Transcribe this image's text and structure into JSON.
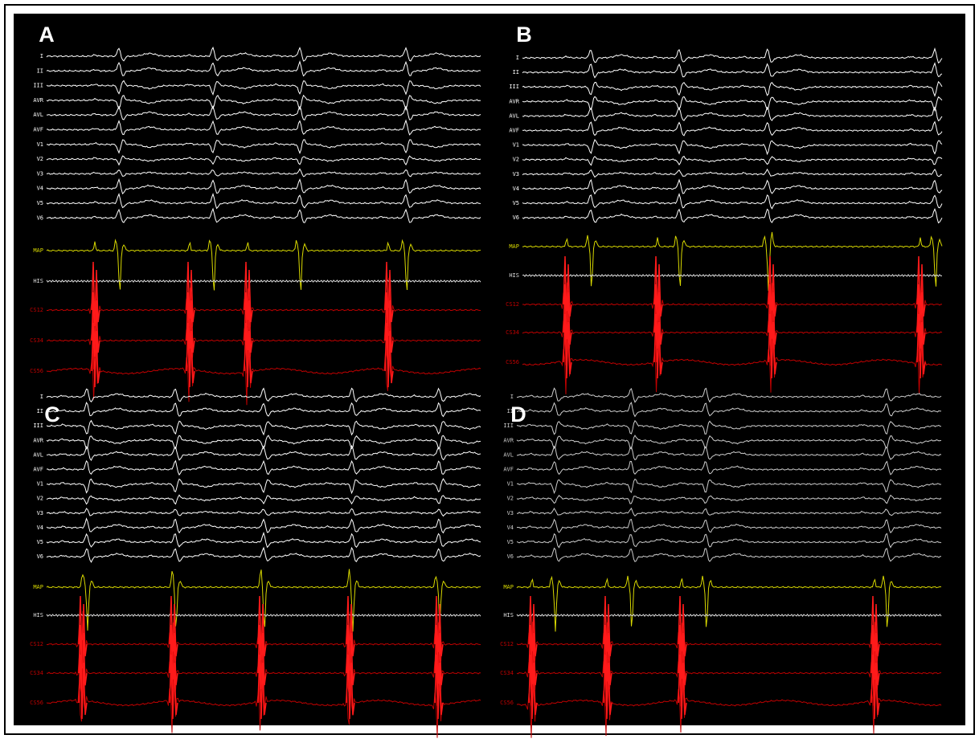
{
  "panels": [
    {
      "label": "A",
      "channels": [
        "I",
        "II",
        "III",
        "AVR",
        "AVL",
        "AVF",
        "V1",
        "V2",
        "V3",
        "V4",
        "V5",
        "V6",
        "MAP",
        "HIS",
        "CS12",
        "CS34",
        "CS56"
      ]
    },
    {
      "label": "B",
      "channels": [
        "I",
        "II",
        "III",
        "AVR",
        "AVL",
        "AVF",
        "V1",
        "V2",
        "V3",
        "V4",
        "V5",
        "V6",
        "MAP",
        "HIS",
        "CS12",
        "CS34",
        "CS56"
      ]
    },
    {
      "label": "C",
      "channels": [
        "I",
        "II",
        "III",
        "AVR",
        "AVL",
        "AVF",
        "V1",
        "V2",
        "V3",
        "V4",
        "V5",
        "V6",
        "MAP",
        "HIS",
        "CS12",
        "CS34",
        "CS56"
      ]
    },
    {
      "label": "D",
      "channels": [
        "I",
        "II",
        "III",
        "AVR",
        "AVL",
        "AVF",
        "V1",
        "V2",
        "V3",
        "V4",
        "V5",
        "V6",
        "MAP",
        "HIS",
        "CS12",
        "CS34",
        "CS56"
      ]
    }
  ]
}
